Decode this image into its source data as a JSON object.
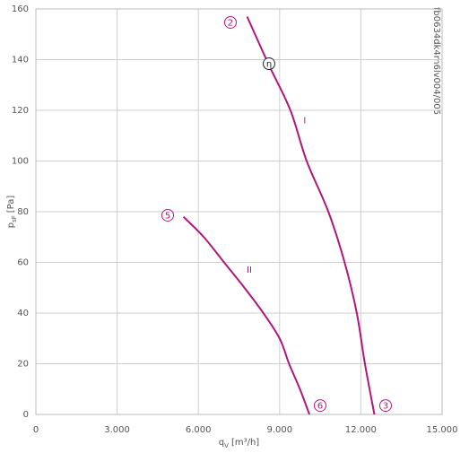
{
  "chart_data": {
    "type": "line",
    "code": "fb0634dk4m6lv004/005",
    "x_label": {
      "main": "q",
      "sub": "V",
      "unit": "[m³/h]"
    },
    "y_label": {
      "main": "p",
      "sub": "sF",
      "unit": "[Pa]"
    },
    "xlim": [
      0,
      15000
    ],
    "ylim": [
      0,
      160
    ],
    "xticks": [
      0,
      {
        "value": 3000,
        "label": "3.000"
      },
      {
        "value": 6000,
        "label": "6.000"
      },
      {
        "value": 9000,
        "label": "9.000"
      },
      {
        "value": 12000,
        "label": "12.000"
      },
      {
        "value": 15000,
        "label": "15.000"
      }
    ],
    "yticks": [
      0,
      20,
      40,
      60,
      80,
      100,
      120,
      140,
      160
    ],
    "grid": true,
    "series": [
      {
        "name": "I",
        "color": "#b0177a",
        "label_x": 9930,
        "label_y": 116,
        "x": [
          7800,
          8600,
          9400,
          10000,
          10800,
          11400,
          11850,
          12150,
          12500
        ],
        "values": [
          157,
          138,
          120,
          100,
          80,
          60,
          40,
          20,
          0
        ]
      },
      {
        "name": "II",
        "color": "#b0177a",
        "label_x": 7880,
        "label_y": 57,
        "x": [
          5450,
          6200,
          6950,
          7700,
          8400,
          9000,
          9350,
          9750,
          10100
        ],
        "values": [
          78,
          70,
          60,
          50,
          40,
          30,
          20,
          10,
          0
        ]
      }
    ],
    "annotations": [
      {
        "text": "2",
        "x": 7185,
        "y": 154.7,
        "color": "#b0177a"
      },
      {
        "text": "η",
        "x": 8609,
        "y": 138.4,
        "color": "#222222"
      },
      {
        "text": "5",
        "x": 4868,
        "y": 78.6,
        "color": "#b0177a"
      },
      {
        "text": "6",
        "x": 10497,
        "y": 3.5,
        "color": "#b0177a"
      },
      {
        "text": "3",
        "x": 12914,
        "y": 3.5,
        "color": "#b0177a"
      }
    ]
  }
}
